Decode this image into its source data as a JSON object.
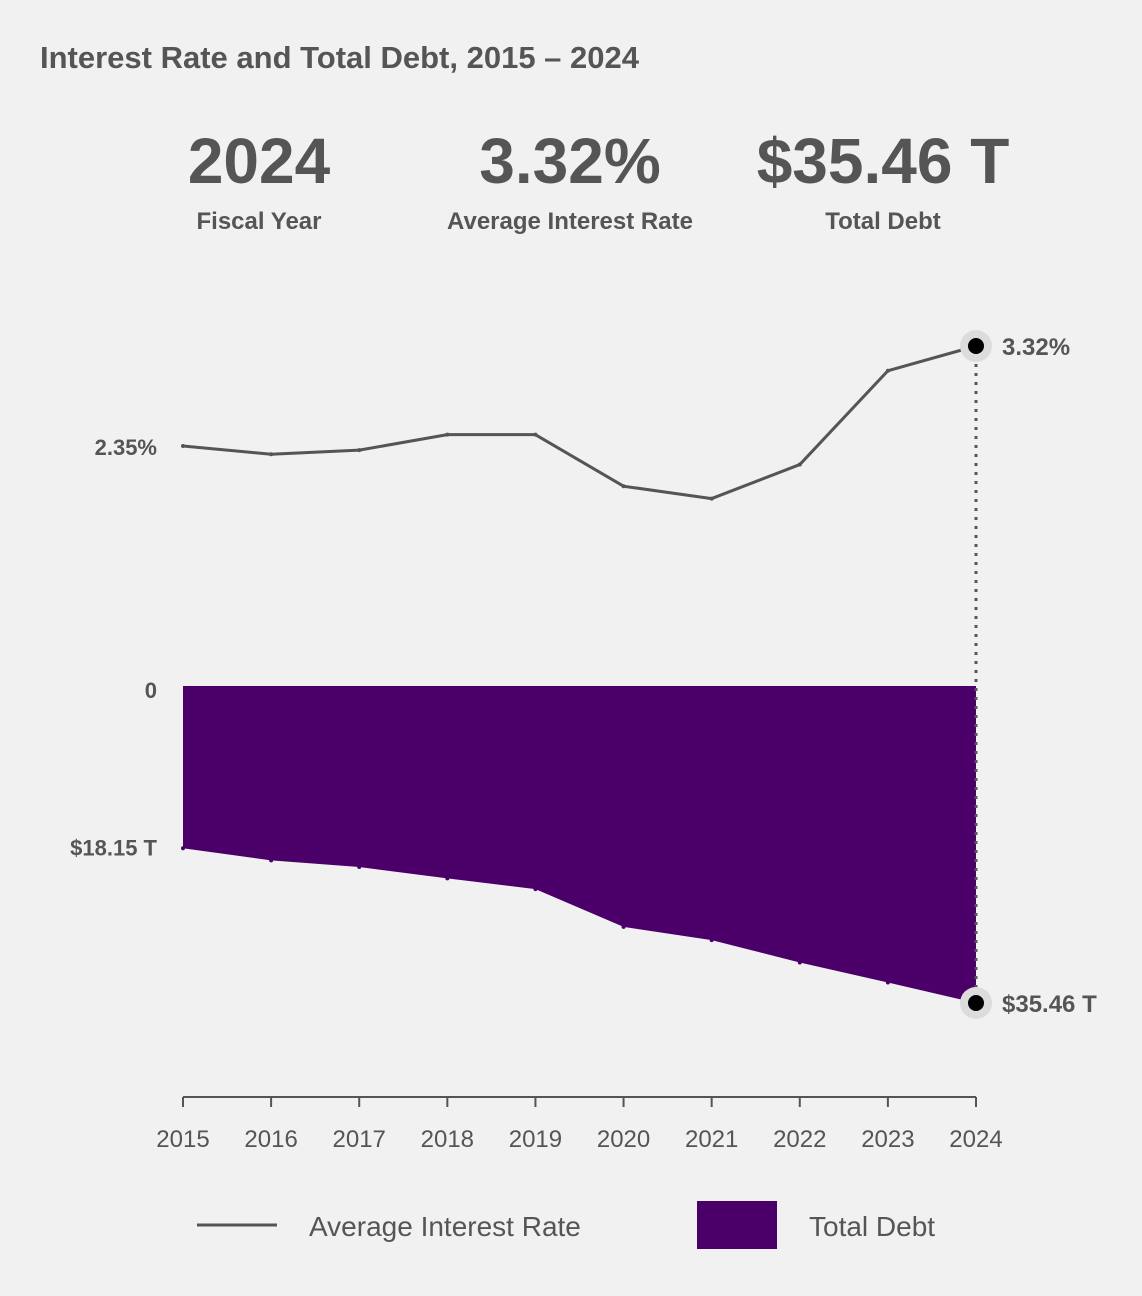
{
  "header": {
    "title": "Interest Rate and Total Debt, 2015 – 2024"
  },
  "stats": {
    "year": {
      "value": "2024",
      "label": "Fiscal Year"
    },
    "rate": {
      "value": "3.32%",
      "label": "Average Interest Rate"
    },
    "debt": {
      "value": "$35.46 T",
      "label": "Total Debt"
    }
  },
  "colors": {
    "background": "#f1f1f1",
    "text": "#555555",
    "rate_line": "#555555",
    "debt_fill": "#4a0068",
    "marker": "#000000"
  },
  "legend": {
    "rate_label": "Average Interest Rate",
    "debt_label": "Total Debt"
  },
  "chart_data": {
    "type": "line+area",
    "x": [
      "2015",
      "2016",
      "2017",
      "2018",
      "2019",
      "2020",
      "2021",
      "2022",
      "2023",
      "2024"
    ],
    "series": [
      {
        "name": "Average Interest Rate",
        "type": "line",
        "unit": "%",
        "values": [
          2.35,
          2.27,
          2.31,
          2.46,
          2.46,
          1.96,
          1.84,
          2.17,
          3.08,
          3.32
        ]
      },
      {
        "name": "Total Debt",
        "type": "area",
        "unit": "T",
        "values": [
          18.15,
          19.5,
          20.25,
          21.52,
          22.72,
          26.95,
          28.43,
          30.93,
          33.17,
          35.46
        ]
      }
    ],
    "y_tick_labels": {
      "rate": [
        "2.35%"
      ],
      "debt": [
        "0",
        "$18.15 T"
      ]
    },
    "end_labels": {
      "rate": "3.32%",
      "debt": "$35.46 T"
    },
    "grid": false,
    "legend_position": "bottom"
  }
}
